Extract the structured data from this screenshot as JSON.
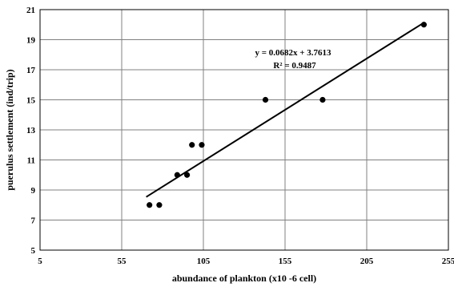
{
  "chart_data": {
    "type": "scatter",
    "xlabel": "abundance of plankton (x10 -6 cell)",
    "ylabel": "puerulus settlement (ind/trip)",
    "xlim": [
      5,
      255
    ],
    "ylim": [
      5,
      21
    ],
    "xticks": [
      5,
      55,
      105,
      155,
      205,
      255
    ],
    "yticks": [
      5,
      7,
      9,
      11,
      13,
      15,
      17,
      19,
      21
    ],
    "grid": true,
    "legend": "none",
    "points": [
      {
        "x": 72,
        "y": 8
      },
      {
        "x": 78,
        "y": 8
      },
      {
        "x": 89,
        "y": 10
      },
      {
        "x": 95,
        "y": 10
      },
      {
        "x": 98,
        "y": 12
      },
      {
        "x": 104,
        "y": 12
      },
      {
        "x": 143,
        "y": 15
      },
      {
        "x": 178,
        "y": 15
      },
      {
        "x": 240,
        "y": 20
      }
    ],
    "trendline": {
      "type": "linear",
      "slope": 0.0682,
      "intercept": 3.7613,
      "x_range": [
        70,
        240
      ],
      "equation_text": "y = 0.0682x + 3.7613",
      "r2_text": "R² = 0.9487"
    },
    "colors": {
      "points": "#000000",
      "line": "#000000",
      "grid": "#808080",
      "frame": "#000000"
    }
  }
}
